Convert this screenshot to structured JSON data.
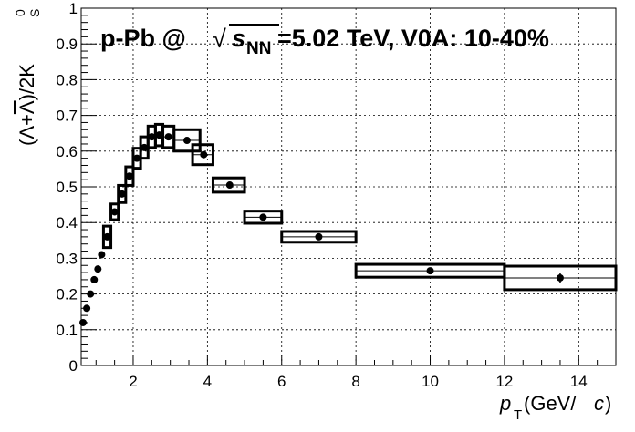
{
  "chart_data": {
    "type": "scatter",
    "title_parts": {
      "prefix": "p-Pb @ ",
      "sqrt": "√",
      "s": "s",
      "nn": "NN",
      "suffix": "=5.02 TeV, V0A: 10-40%"
    },
    "xlabel_parts": {
      "p": "p",
      "sub": "T",
      "unit": " (GeV/",
      "c": "c",
      "close": ")"
    },
    "ylabel_parts": {
      "text": "(Λ+",
      "lambda_bar": "Λ",
      "mid": ")/2K",
      "sup": "0",
      "sub": "S"
    },
    "xlim": [
      0.6,
      15
    ],
    "ylim": [
      0,
      1
    ],
    "x_ticks": [
      2,
      4,
      6,
      8,
      10,
      12,
      14
    ],
    "x_tick_labels": [
      "2",
      "4",
      "6",
      "8",
      "10",
      "12",
      "14"
    ],
    "y_ticks": [
      0,
      0.1,
      0.2,
      0.3,
      0.4,
      0.5,
      0.6,
      0.7,
      0.8,
      0.9,
      1
    ],
    "y_tick_labels": [
      "0",
      "0.1",
      "0.2",
      "0.3",
      "0.4",
      "0.5",
      "0.6",
      "0.7",
      "0.8",
      "0.9",
      "1"
    ],
    "grid": true,
    "points": [
      {
        "x": 0.65,
        "y": 0.12,
        "sys": 0.006
      },
      {
        "x": 0.75,
        "y": 0.16,
        "sys": 0.008
      },
      {
        "x": 0.85,
        "y": 0.2,
        "sys": 0.009
      },
      {
        "x": 0.95,
        "y": 0.24,
        "sys": 0.01
      },
      {
        "x": 1.05,
        "y": 0.27,
        "sys": 0.012
      },
      {
        "x": 1.15,
        "y": 0.31,
        "sys": 0.014
      },
      {
        "x": 1.3,
        "y": 0.36,
        "sys": 0.03,
        "xlo": 1.2,
        "xhi": 1.4
      },
      {
        "x": 1.5,
        "y": 0.43,
        "sys": 0.022,
        "xlo": 1.4,
        "xhi": 1.6
      },
      {
        "x": 1.7,
        "y": 0.48,
        "sys": 0.024,
        "xlo": 1.6,
        "xhi": 1.8
      },
      {
        "x": 1.9,
        "y": 0.53,
        "sys": 0.026,
        "xlo": 1.8,
        "xhi": 2.0
      },
      {
        "x": 2.1,
        "y": 0.58,
        "sys": 0.028,
        "xlo": 2.0,
        "xhi": 2.2
      },
      {
        "x": 2.3,
        "y": 0.61,
        "sys": 0.03,
        "xlo": 2.2,
        "xhi": 2.4
      },
      {
        "x": 2.5,
        "y": 0.64,
        "sys": 0.03,
        "xlo": 2.4,
        "xhi": 2.6
      },
      {
        "x": 2.7,
        "y": 0.645,
        "sys": 0.03,
        "xlo": 2.6,
        "xhi": 2.8
      },
      {
        "x": 2.95,
        "y": 0.64,
        "sys": 0.03,
        "xlo": 2.8,
        "xhi": 3.1
      },
      {
        "x": 3.45,
        "y": 0.63,
        "sys": 0.03,
        "xlo": 3.1,
        "xhi": 3.8
      },
      {
        "x": 3.9,
        "y": 0.59,
        "sys": 0.028,
        "xlo": 3.6,
        "xhi": 4.15
      },
      {
        "x": 4.6,
        "y": 0.505,
        "sys": 0.02,
        "xlo": 4.15,
        "xhi": 5.0
      },
      {
        "x": 5.5,
        "y": 0.415,
        "sys": 0.017,
        "xlo": 5.0,
        "xhi": 6.0
      },
      {
        "x": 7.0,
        "y": 0.36,
        "sys": 0.015,
        "xlo": 6.0,
        "xhi": 8.0
      },
      {
        "x": 10.0,
        "y": 0.265,
        "sys": 0.018,
        "xlo": 8.0,
        "xhi": 12.0
      },
      {
        "x": 13.5,
        "y": 0.245,
        "sys": 0.033,
        "xlo": 12.0,
        "xhi": 15.0,
        "stat": 0.015
      }
    ]
  }
}
